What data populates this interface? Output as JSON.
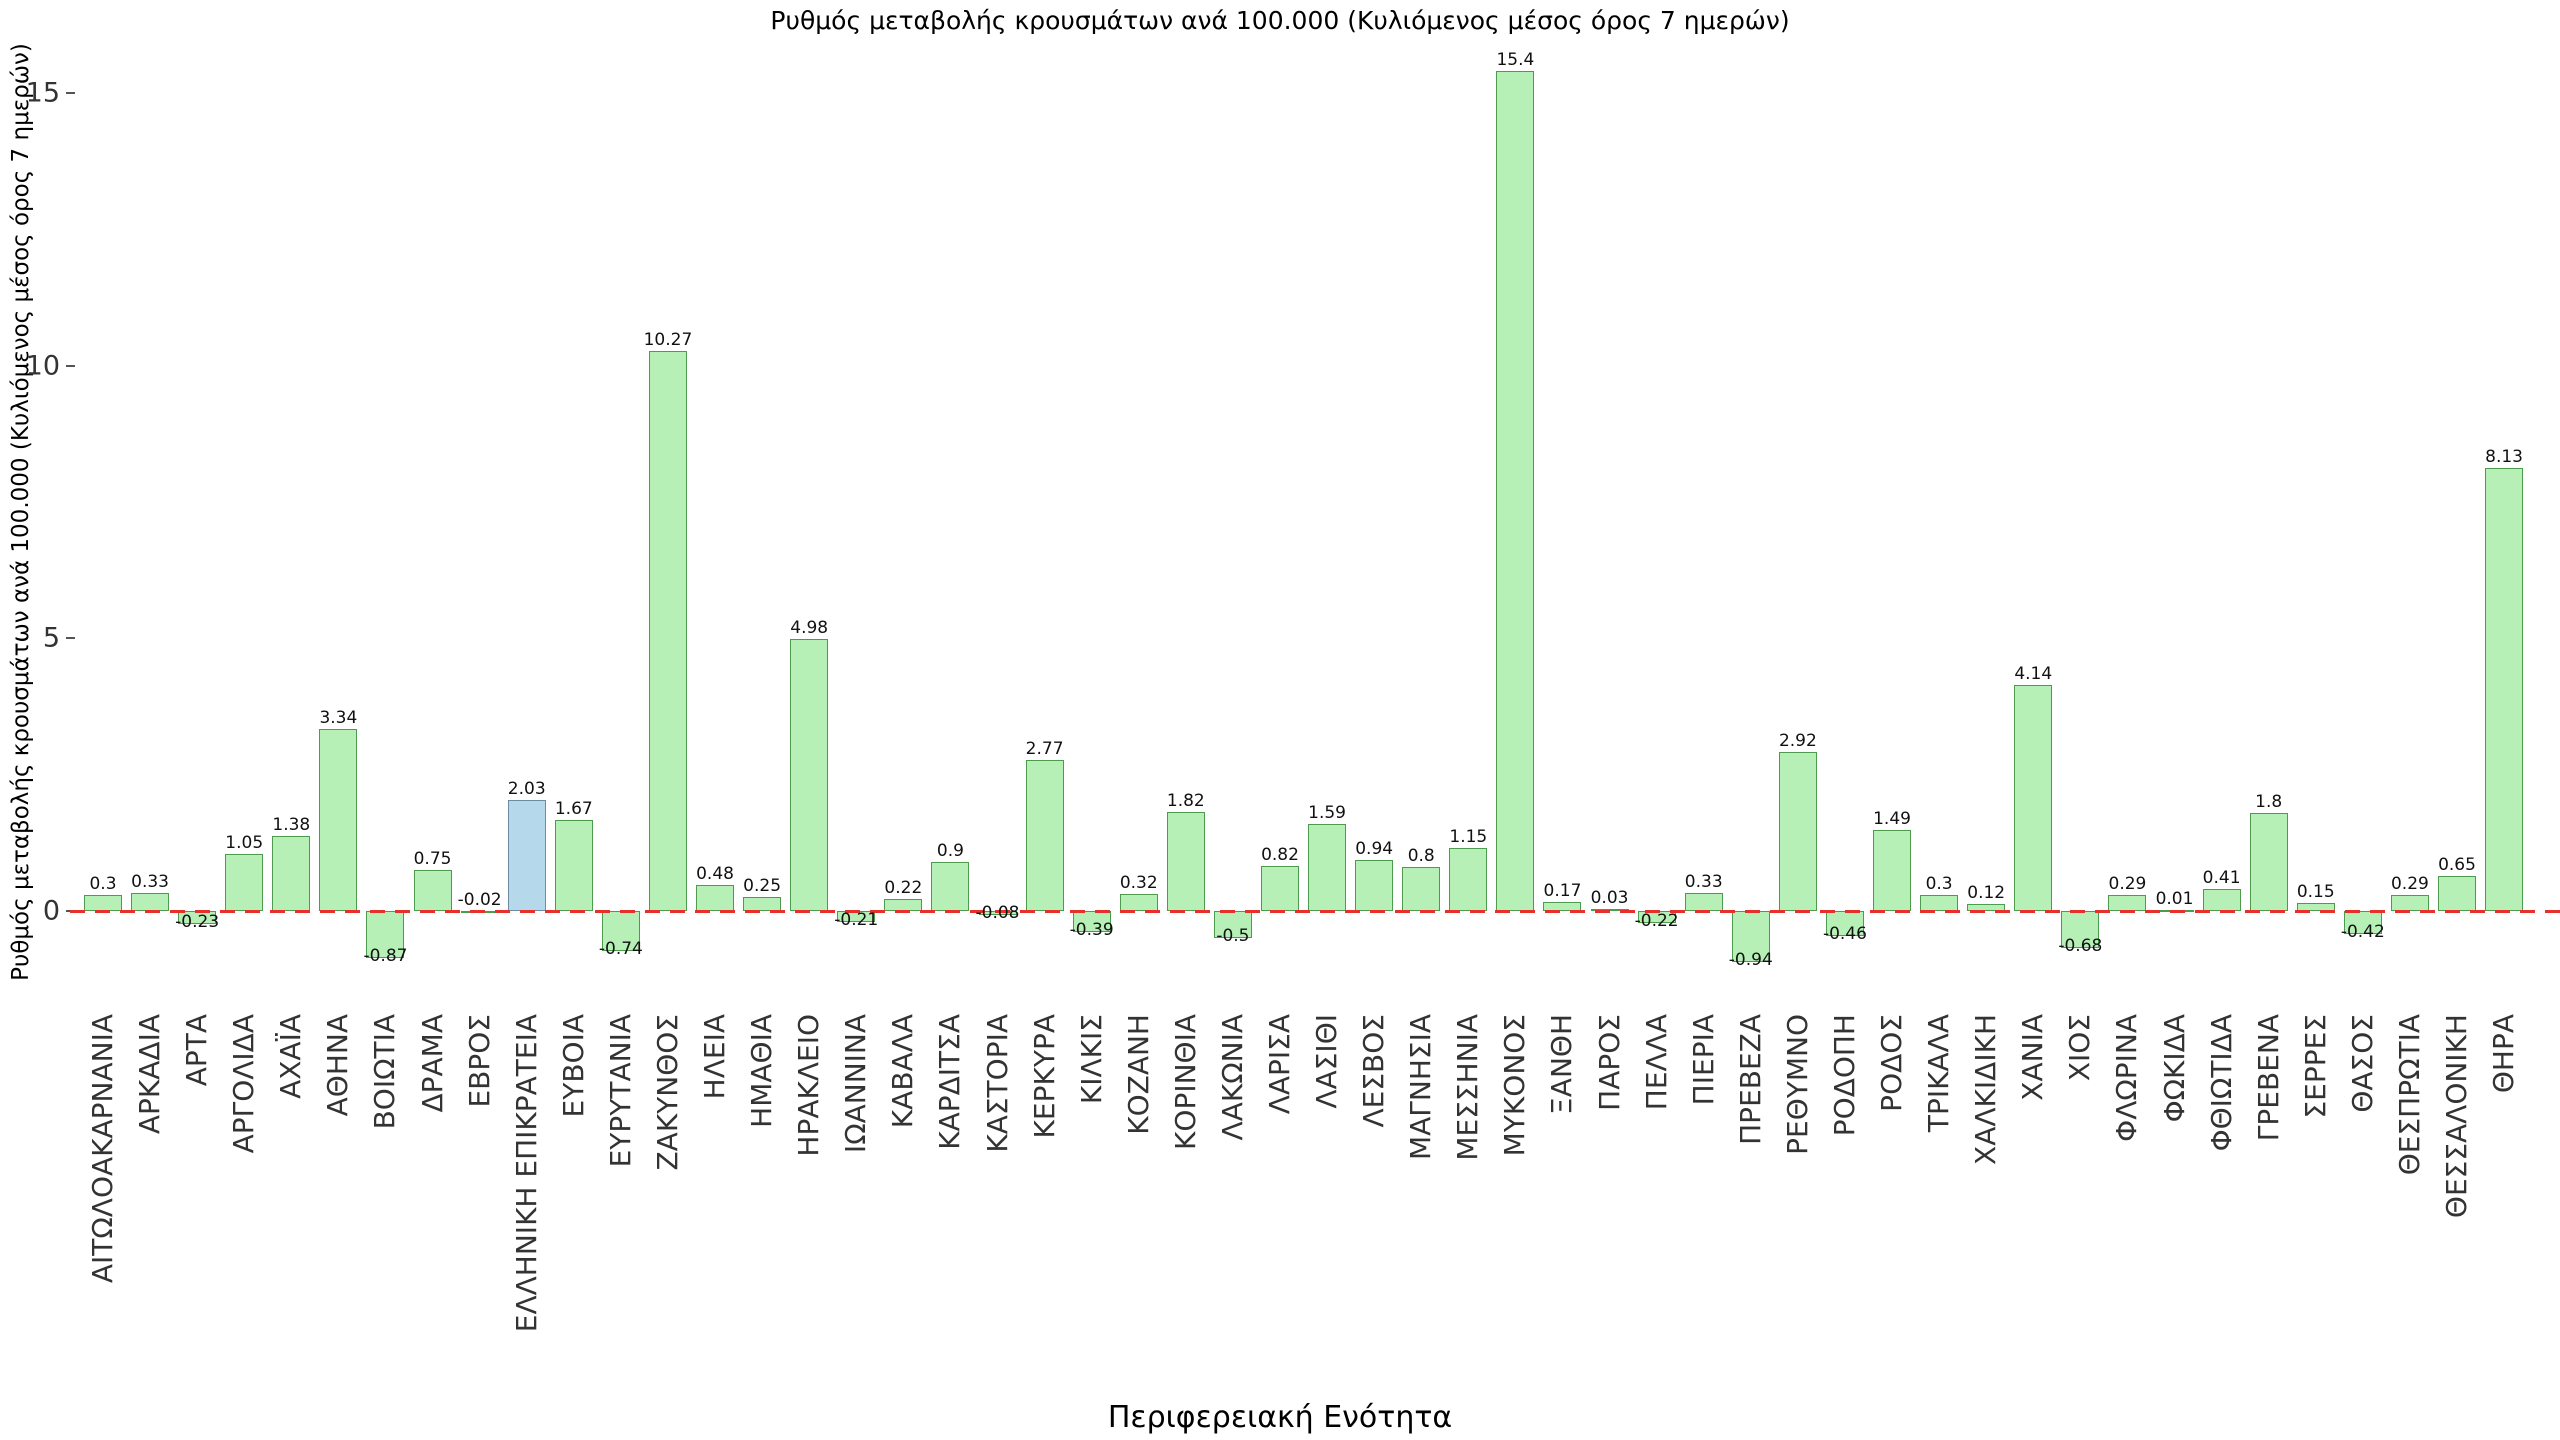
{
  "chart_data": {
    "type": "bar",
    "title": "Ρυθμός μεταβολής κρουσμάτων ανά 100.000 (Κυλιόμενος μέσος όρος 7 ημερών)",
    "xlabel": "Περιφερειακή Ενότητα",
    "ylabel": "Ρυθμός μεταβολής κρουσμάτων ανά 100.000 (Κυλιόμενος μέσος όρος 7 ημερών)",
    "grid": false,
    "legend": "none",
    "yticks": [
      0,
      5,
      10,
      15
    ],
    "ylim": [
      -1.75,
      16.2
    ],
    "zero_line": {
      "style": "dashed",
      "color": "#e8302a"
    },
    "bar_colors": {
      "default_fill": "#b7f0b7",
      "default_border": "#4e9a4e",
      "highlight_fill": "#b5d9ea",
      "highlight_border": "#6b8ca3"
    },
    "highlight_category": "ΕΛΛΗΝΙΚΗ ΕΠΙΚΡΑΤΕΙΑ",
    "highlight_index": 9,
    "categories": [
      "ΑΙΤΩΛΟΑΚΑΡΝΑΝΙΑ",
      "ΑΡΚΑΔΙΑ",
      "ΑΡΤΑ",
      "ΑΡΓΟΛΙΔΑ",
      "ΑΧΑΪΑ",
      "ΑΘΗΝΑ",
      "ΒΟΙΩΤΙΑ",
      "ΔΡΑΜΑ",
      "ΕΒΡΟΣ",
      "ΕΛΛΗΝΙΚΗ ΕΠΙΚΡΑΤΕΙΑ",
      "ΕΥΒΟΙΑ",
      "ΕΥΡΥΤΑΝΙΑ",
      "ΖΑΚΥΝΘΟΣ",
      "ΗΛΕΙΑ",
      "ΗΜΑΘΙΑ",
      "ΗΡΑΚΛΕΙΟ",
      "ΙΩΑΝΝΙΝΑ",
      "ΚΑΒΑΛΑ",
      "ΚΑΡΔΙΤΣΑ",
      "ΚΑΣΤΟΡΙΑ",
      "ΚΕΡΚΥΡΑ",
      "ΚΙΛΚΙΣ",
      "ΚΟΖΑΝΗ",
      "ΚΟΡΙΝΘΙΑ",
      "ΛΑΚΩΝΙΑ",
      "ΛΑΡΙΣΑ",
      "ΛΑΣΙΘΙ",
      "ΛΕΣΒΟΣ",
      "ΜΑΓΝΗΣΙΑ",
      "ΜΕΣΣΗΝΙΑ",
      "ΜΥΚΟΝΟΣ",
      "ΞΑΝΘΗ",
      "ΠΑΡΟΣ",
      "ΠΕΛΛΑ",
      "ΠΙΕΡΙΑ",
      "ΠΡΕΒΕΖΑ",
      "ΡΕΘΥΜΝΟ",
      "ΡΟΔΟΠΗ",
      "ΡΟΔΟΣ",
      "ΤΡΙΚΑΛΑ",
      "ΧΑΛΚΙΔΙΚΗ",
      "ΧΑΝΙΑ",
      "ΧΙΟΣ",
      "ΦΛΩΡΙΝΑ",
      "ΦΩΚΙΔΑ",
      "ΦΘΙΩΤΙΔΑ",
      "ΓΡΕΒΕΝΑ",
      "ΣΕΡΡΕΣ",
      "ΘΑΣΟΣ",
      "ΘΕΣΠΡΩΤΙΑ",
      "ΘΕΣΣΑΛΟΝΙΚΗ",
      "ΘΗΡΑ"
    ],
    "values": [
      0.3,
      0.33,
      -0.23,
      1.05,
      1.38,
      3.34,
      -0.87,
      0.75,
      -0.02,
      2.03,
      1.67,
      -0.74,
      10.27,
      0.48,
      0.25,
      4.98,
      -0.21,
      0.22,
      0.9,
      -0.08,
      2.77,
      -0.39,
      0.32,
      1.82,
      -0.5,
      0.82,
      1.59,
      0.94,
      0.8,
      1.15,
      15.4,
      0.17,
      0.03,
      -0.22,
      0.33,
      -0.94,
      2.92,
      -0.46,
      1.49,
      0.3,
      0.12,
      4.14,
      -0.68,
      0.29,
      0.01,
      0.41,
      1.8,
      0.15,
      -0.42,
      0.29,
      0.65,
      8.13
    ],
    "labels": [
      "0.3",
      "0.33",
      "-0.23",
      "1.05",
      "1.38",
      "3.34",
      "-0.87",
      "0.75",
      "-0.02",
      "2.03",
      "1.67",
      "-0.74",
      "10.27",
      "0.48",
      "0.25",
      "4.98",
      "-0.21",
      "0.22",
      "0.9",
      "-0.08",
      "2.77",
      "-0.39",
      "0.32",
      "1.82",
      "-0.5",
      "0.82",
      "1.59",
      "0.94",
      "0.8",
      "1.15",
      "15.4",
      "0.17",
      "0.03",
      "-0.22",
      "0.33",
      "-0.94",
      "2.92",
      "-0.46",
      "1.49",
      "0.3",
      "0.12",
      "4.14",
      "-0.68",
      "0.29",
      "0.01",
      "0.41",
      "1.8",
      "0.15",
      "-0.42",
      "0.29",
      "0.65",
      "8.13"
    ]
  }
}
